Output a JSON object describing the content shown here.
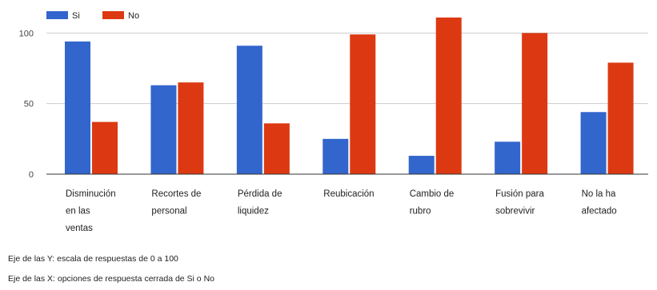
{
  "chart_data": {
    "type": "bar",
    "categories": [
      [
        "Disminución",
        "en las",
        "ventas"
      ],
      [
        "Recortes de",
        "personal"
      ],
      [
        "Pérdida  de",
        "liquidez"
      ],
      [
        "Reubicación"
      ],
      [
        "Cambio de",
        "rubro"
      ],
      [
        "Fusión para",
        "sobrevivir"
      ],
      [
        "No la ha",
        "afectado"
      ]
    ],
    "series": [
      {
        "name": "Si",
        "color": "#3366cc",
        "values": [
          94,
          63,
          91,
          25,
          13,
          23,
          44
        ]
      },
      {
        "name": "No",
        "color": "#dc3912",
        "values": [
          37,
          65,
          36,
          99,
          111,
          100,
          79
        ]
      }
    ],
    "ylim": [
      0,
      120
    ],
    "yticks": [
      0,
      50,
      100
    ],
    "grid": true,
    "legend_position": "top-left",
    "title": "",
    "xlabel": "",
    "ylabel": ""
  },
  "notes": {
    "y_axis_note": "Eje de las Y: escala de respuestas de 0 a 100",
    "x_axis_note": "Eje de las X: opciones de respuesta cerrada de Si o No"
  }
}
